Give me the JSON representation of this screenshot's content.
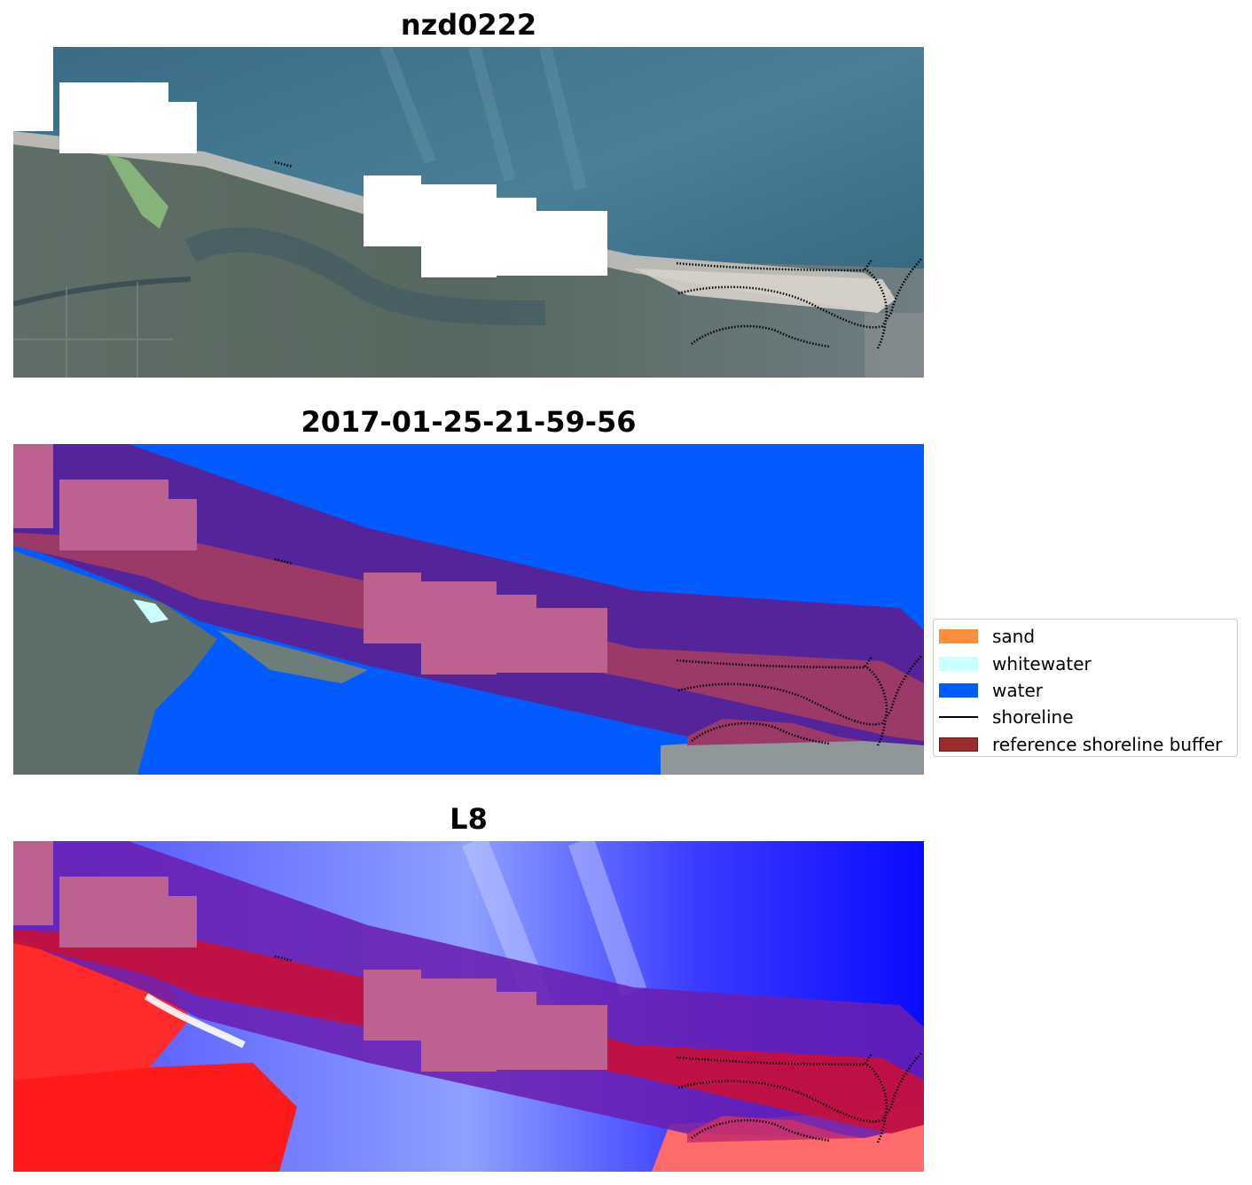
{
  "panels": [
    {
      "title": "nzd0222",
      "view": "rgb-satellite-image"
    },
    {
      "title": "2017-01-25-21-59-56",
      "view": "classified-image"
    },
    {
      "title": "L8",
      "view": "water-index-image"
    }
  ],
  "legend": {
    "items": [
      {
        "label": "sand",
        "color": "#fd8e3c",
        "kind": "patch"
      },
      {
        "label": "whitewater",
        "color": "#ccffff",
        "kind": "patch"
      },
      {
        "label": "water",
        "color": "#005cff",
        "kind": "patch"
      },
      {
        "label": "shoreline",
        "color": "#000000",
        "kind": "line"
      },
      {
        "label": "reference shoreline buffer",
        "color": "#9b2c2c",
        "kind": "patch"
      }
    ]
  },
  "colors": {
    "ocean": "#3e6d84",
    "land": "#5b6d66",
    "water_class": "#005cff",
    "buffer_overlay": "#9b2c2c",
    "cloud_mask": "#ffffff",
    "cloud_mask_overlay": "#bd6290",
    "index_positive": "#ff1a1a",
    "index_negative": "#1a1aff"
  }
}
